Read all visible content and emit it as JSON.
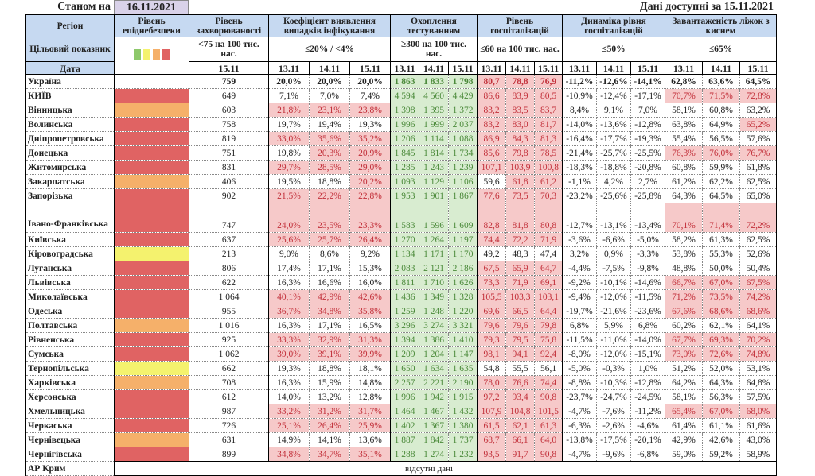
{
  "header": {
    "asof_label": "Станом на",
    "asof_date": "16.11.2021",
    "available": "Дані доступні за 15.11.2021"
  },
  "columns": {
    "region": "Регіон",
    "level": "Рівень епіднебезпеки",
    "rate": "Рівень захворюваності",
    "coef": "Коефіцієнт виявлення випадків інфікування",
    "test": "Охоплення тестуванням",
    "hosp": "Рівень госпіталізацій",
    "dyn": "Динаміка рівня госпіталізацій",
    "beds": "Завантаженість ліжок з киснем"
  },
  "target": {
    "label": "Цільовий показник",
    "rate": "<75 на 100 тис. нас.",
    "coef": "≤20% / <4%",
    "test": "≥300 на 100 тис. нас.",
    "hosp": "≤60 на 100 тис. нас.",
    "dyn": "≤50%",
    "beds": "≤65%"
  },
  "legend_colors": [
    "#8dc86a",
    "#f4f26e",
    "#f5b06a",
    "#e06363"
  ],
  "dates": {
    "label": "Дата",
    "rate": "15.11",
    "three": [
      "13.11",
      "14.11",
      "15.11"
    ]
  },
  "rows": [
    {
      "region": "Україна",
      "level": "",
      "rate": "759",
      "coef": [
        "20,0%",
        "20,0%",
        "20,0%"
      ],
      "test": [
        "1 863",
        "1 833",
        "1 798"
      ],
      "hosp": [
        "80,7",
        "78,8",
        "76,9"
      ],
      "dyn": [
        "-11,2%",
        "-12,6%",
        "-14,1%"
      ],
      "beds": [
        "62,8%",
        "63,6%",
        "64,5%"
      ]
    },
    {
      "region": "КИЇВ",
      "level": "red",
      "rate": "649",
      "coef": [
        "7,1%",
        "7,0%",
        "7,4%"
      ],
      "test": [
        "4 594",
        "4 560",
        "4 429"
      ],
      "hosp": [
        "86,6",
        "83,9",
        "80,5"
      ],
      "dyn": [
        "-10,9%",
        "-12,4%",
        "-17,1%"
      ],
      "beds": [
        "70,7%",
        "71,5%",
        "72,8%"
      ]
    },
    {
      "region": "Вінницька",
      "level": "orange",
      "rate": "603",
      "coef": [
        "21,8%",
        "23,1%",
        "23,8%"
      ],
      "test": [
        "1 398",
        "1 395",
        "1 372"
      ],
      "hosp": [
        "83,2",
        "83,5",
        "83,7"
      ],
      "dyn": [
        "8,4%",
        "9,1%",
        "7,0%"
      ],
      "beds": [
        "58,1%",
        "60,8%",
        "63,2%"
      ]
    },
    {
      "region": "Волинська",
      "level": "red",
      "rate": "758",
      "coef": [
        "19,7%",
        "19,4%",
        "19,3%"
      ],
      "test": [
        "1 996",
        "1 999",
        "2 037"
      ],
      "hosp": [
        "83,2",
        "83,0",
        "81,7"
      ],
      "dyn": [
        "-14,0%",
        "-13,6%",
        "-12,8%"
      ],
      "beds": [
        "63,8%",
        "64,9%",
        "65,2%"
      ]
    },
    {
      "region": "Дніпропетровська",
      "level": "red",
      "rate": "819",
      "coef": [
        "33,0%",
        "35,6%",
        "35,2%"
      ],
      "test": [
        "1 206",
        "1 114",
        "1 088"
      ],
      "hosp": [
        "86,9",
        "84,3",
        "81,3"
      ],
      "dyn": [
        "-16,4%",
        "-17,7%",
        "-19,3%"
      ],
      "beds": [
        "55,4%",
        "56,5%",
        "57,6%"
      ]
    },
    {
      "region": "Донецька",
      "level": "red",
      "rate": "751",
      "coef": [
        "19,8%",
        "20,3%",
        "20,9%"
      ],
      "test": [
        "1 845",
        "1 814",
        "1 734"
      ],
      "hosp": [
        "85,6",
        "79,8",
        "78,5"
      ],
      "dyn": [
        "-21,4%",
        "-25,7%",
        "-25,5%"
      ],
      "beds": [
        "76,3%",
        "76,0%",
        "76,7%"
      ]
    },
    {
      "region": "Житомирська",
      "level": "red",
      "rate": "831",
      "coef": [
        "29,7%",
        "28,5%",
        "29,0%"
      ],
      "test": [
        "1 285",
        "1 243",
        "1 239"
      ],
      "hosp": [
        "107,1",
        "103,9",
        "100,8"
      ],
      "dyn": [
        "-18,3%",
        "-18,8%",
        "-20,8%"
      ],
      "beds": [
        "60,8%",
        "59,9%",
        "61,8%"
      ]
    },
    {
      "region": "Закарпатська",
      "level": "orange",
      "rate": "406",
      "coef": [
        "19,5%",
        "18,8%",
        "20,2%"
      ],
      "test": [
        "1 093",
        "1 129",
        "1 106"
      ],
      "hosp": [
        "59,6",
        "61,8",
        "61,2"
      ],
      "dyn": [
        "-1,1%",
        "4,2%",
        "2,7%"
      ],
      "beds": [
        "61,2%",
        "62,2%",
        "62,5%"
      ]
    },
    {
      "region": "Запорізька",
      "level": "red",
      "rate": "902",
      "coef": [
        "21,5%",
        "22,2%",
        "22,8%"
      ],
      "test": [
        "1 953",
        "1 901",
        "1 867"
      ],
      "hosp": [
        "77,6",
        "73,5",
        "70,3"
      ],
      "dyn": [
        "-23,2%",
        "-25,6%",
        "-25,8%"
      ],
      "beds": [
        "64,3%",
        "64,5%",
        "65,0%"
      ]
    },
    {
      "region": "Івано-Франківська",
      "level": "red",
      "rate": "747",
      "coef": [
        "24,0%",
        "23,5%",
        "23,3%"
      ],
      "test": [
        "1 583",
        "1 596",
        "1 609"
      ],
      "hosp": [
        "82,8",
        "81,8",
        "80,8"
      ],
      "dyn": [
        "-12,7%",
        "-13,1%",
        "-13,4%"
      ],
      "beds": [
        "70,1%",
        "71,4%",
        "72,2%"
      ]
    },
    {
      "region": "Київська",
      "level": "red",
      "rate": "637",
      "coef": [
        "25,6%",
        "25,7%",
        "26,4%"
      ],
      "test": [
        "1 270",
        "1 264",
        "1 197"
      ],
      "hosp": [
        "74,4",
        "72,2",
        "71,9"
      ],
      "dyn": [
        "-3,6%",
        "-6,6%",
        "-5,0%"
      ],
      "beds": [
        "58,2%",
        "61,3%",
        "62,5%"
      ]
    },
    {
      "region": "Кіровоградська",
      "level": "yellow",
      "rate": "213",
      "coef": [
        "9,0%",
        "8,6%",
        "9,2%"
      ],
      "test": [
        "1 134",
        "1 171",
        "1 170"
      ],
      "hosp": [
        "49,2",
        "48,3",
        "47,4"
      ],
      "dyn": [
        "3,2%",
        "0,9%",
        "-3,3%"
      ],
      "beds": [
        "53,8%",
        "55,3%",
        "52,6%"
      ]
    },
    {
      "region": "Луганська",
      "level": "red",
      "rate": "806",
      "coef": [
        "17,4%",
        "17,1%",
        "15,3%"
      ],
      "test": [
        "2 083",
        "2 121",
        "2 186"
      ],
      "hosp": [
        "67,5",
        "65,9",
        "64,7"
      ],
      "dyn": [
        "-4,4%",
        "-7,5%",
        "-9,8%"
      ],
      "beds": [
        "48,8%",
        "50,0%",
        "50,4%"
      ]
    },
    {
      "region": "Львівська",
      "level": "red",
      "rate": "622",
      "coef": [
        "16,3%",
        "16,6%",
        "16,0%"
      ],
      "test": [
        "1 811",
        "1 710",
        "1 626"
      ],
      "hosp": [
        "73,3",
        "71,9",
        "69,1"
      ],
      "dyn": [
        "-9,2%",
        "-10,1%",
        "-14,6%"
      ],
      "beds": [
        "66,7%",
        "67,0%",
        "67,5%"
      ]
    },
    {
      "region": "Миколаївська",
      "level": "red",
      "rate": "1 064",
      "coef": [
        "40,1%",
        "42,9%",
        "42,6%"
      ],
      "test": [
        "1 436",
        "1 349",
        "1 328"
      ],
      "hosp": [
        "105,5",
        "103,3",
        "103,1"
      ],
      "dyn": [
        "-9,4%",
        "-12,0%",
        "-11,5%"
      ],
      "beds": [
        "71,2%",
        "73,5%",
        "74,2%"
      ]
    },
    {
      "region": "Одеська",
      "level": "red",
      "rate": "955",
      "coef": [
        "36,7%",
        "34,8%",
        "35,8%"
      ],
      "test": [
        "1 259",
        "1 248",
        "1 220"
      ],
      "hosp": [
        "69,6",
        "66,5",
        "64,4"
      ],
      "dyn": [
        "-19,7%",
        "-21,6%",
        "-23,6%"
      ],
      "beds": [
        "67,6%",
        "68,6%",
        "68,6%"
      ]
    },
    {
      "region": "Полтавська",
      "level": "orange",
      "rate": "1 016",
      "coef": [
        "16,3%",
        "17,1%",
        "16,5%"
      ],
      "test": [
        "3 296",
        "3 274",
        "3 321"
      ],
      "hosp": [
        "79,6",
        "79,6",
        "79,8"
      ],
      "dyn": [
        "6,8%",
        "5,9%",
        "6,8%"
      ],
      "beds": [
        "60,2%",
        "62,1%",
        "64,1%"
      ]
    },
    {
      "region": "Рівненська",
      "level": "red",
      "rate": "925",
      "coef": [
        "33,3%",
        "32,9%",
        "31,3%"
      ],
      "test": [
        "1 394",
        "1 386",
        "1 410"
      ],
      "hosp": [
        "79,3",
        "79,5",
        "75,8"
      ],
      "dyn": [
        "-11,5%",
        "-11,0%",
        "-14,0%"
      ],
      "beds": [
        "67,7%",
        "69,3%",
        "70,2%"
      ]
    },
    {
      "region": "Сумська",
      "level": "red",
      "rate": "1 062",
      "coef": [
        "39,0%",
        "39,1%",
        "39,9%"
      ],
      "test": [
        "1 209",
        "1 204",
        "1 147"
      ],
      "hosp": [
        "98,1",
        "94,1",
        "92,4"
      ],
      "dyn": [
        "-8,0%",
        "-12,0%",
        "-15,1%"
      ],
      "beds": [
        "73,0%",
        "72,6%",
        "74,8%"
      ]
    },
    {
      "region": "Тернопільська",
      "level": "yellow",
      "rate": "662",
      "coef": [
        "19,3%",
        "18,8%",
        "18,1%"
      ],
      "test": [
        "1 650",
        "1 634",
        "1 635"
      ],
      "hosp": [
        "54,8",
        "55,5",
        "56,1"
      ],
      "dyn": [
        "-5,0%",
        "-0,3%",
        "1,0%"
      ],
      "beds": [
        "51,2%",
        "52,0%",
        "53,1%"
      ]
    },
    {
      "region": "Харківська",
      "level": "orange",
      "rate": "708",
      "coef": [
        "16,3%",
        "15,9%",
        "14,8%"
      ],
      "test": [
        "2 257",
        "2 221",
        "2 190"
      ],
      "hosp": [
        "78,0",
        "76,6",
        "74,4"
      ],
      "dyn": [
        "-8,8%",
        "-10,3%",
        "-12,8%"
      ],
      "beds": [
        "64,2%",
        "64,3%",
        "64,8%"
      ]
    },
    {
      "region": "Херсонська",
      "level": "red",
      "rate": "612",
      "coef": [
        "14,0%",
        "13,2%",
        "12,8%"
      ],
      "test": [
        "1 996",
        "1 942",
        "1 915"
      ],
      "hosp": [
        "97,2",
        "93,4",
        "90,8"
      ],
      "dyn": [
        "-23,7%",
        "-24,7%",
        "-24,5%"
      ],
      "beds": [
        "58,1%",
        "56,3%",
        "57,5%"
      ]
    },
    {
      "region": "Хмельницька",
      "level": "red",
      "rate": "987",
      "coef": [
        "33,2%",
        "31,2%",
        "31,7%"
      ],
      "test": [
        "1 464",
        "1 467",
        "1 432"
      ],
      "hosp": [
        "107,9",
        "104,8",
        "101,5"
      ],
      "dyn": [
        "-4,7%",
        "-7,6%",
        "-11,2%"
      ],
      "beds": [
        "65,4%",
        "67,0%",
        "68,0%"
      ]
    },
    {
      "region": "Черкаська",
      "level": "red",
      "rate": "726",
      "coef": [
        "25,1%",
        "26,4%",
        "25,9%"
      ],
      "test": [
        "1 402",
        "1 367",
        "1 380"
      ],
      "hosp": [
        "61,5",
        "62,1",
        "61,3"
      ],
      "dyn": [
        "-6,3%",
        "-2,6%",
        "-4,6%"
      ],
      "beds": [
        "61,4%",
        "61,1%",
        "61,6%"
      ]
    },
    {
      "region": "Чернівецька",
      "level": "orange",
      "rate": "631",
      "coef": [
        "14,9%",
        "14,1%",
        "13,6%"
      ],
      "test": [
        "1 887",
        "1 842",
        "1 737"
      ],
      "hosp": [
        "68,7",
        "66,1",
        "64,0"
      ],
      "dyn": [
        "-13,8%",
        "-17,5%",
        "-20,1%"
      ],
      "beds": [
        "42,9%",
        "42,6%",
        "43,0%"
      ]
    },
    {
      "region": "Чернігівська",
      "level": "red",
      "rate": "899",
      "coef": [
        "34,8%",
        "34,7%",
        "35,1%"
      ],
      "test": [
        "1 288",
        "1 274",
        "1 232"
      ],
      "hosp": [
        "93,5",
        "91,7",
        "90,8"
      ],
      "dyn": [
        "-4,7%",
        "-9,6%",
        "-6,8%"
      ],
      "beds": [
        "59,0%",
        "59,2%",
        "58,9%"
      ]
    }
  ],
  "crimea": {
    "region": "АР Крим",
    "note": "відсутні дані"
  }
}
